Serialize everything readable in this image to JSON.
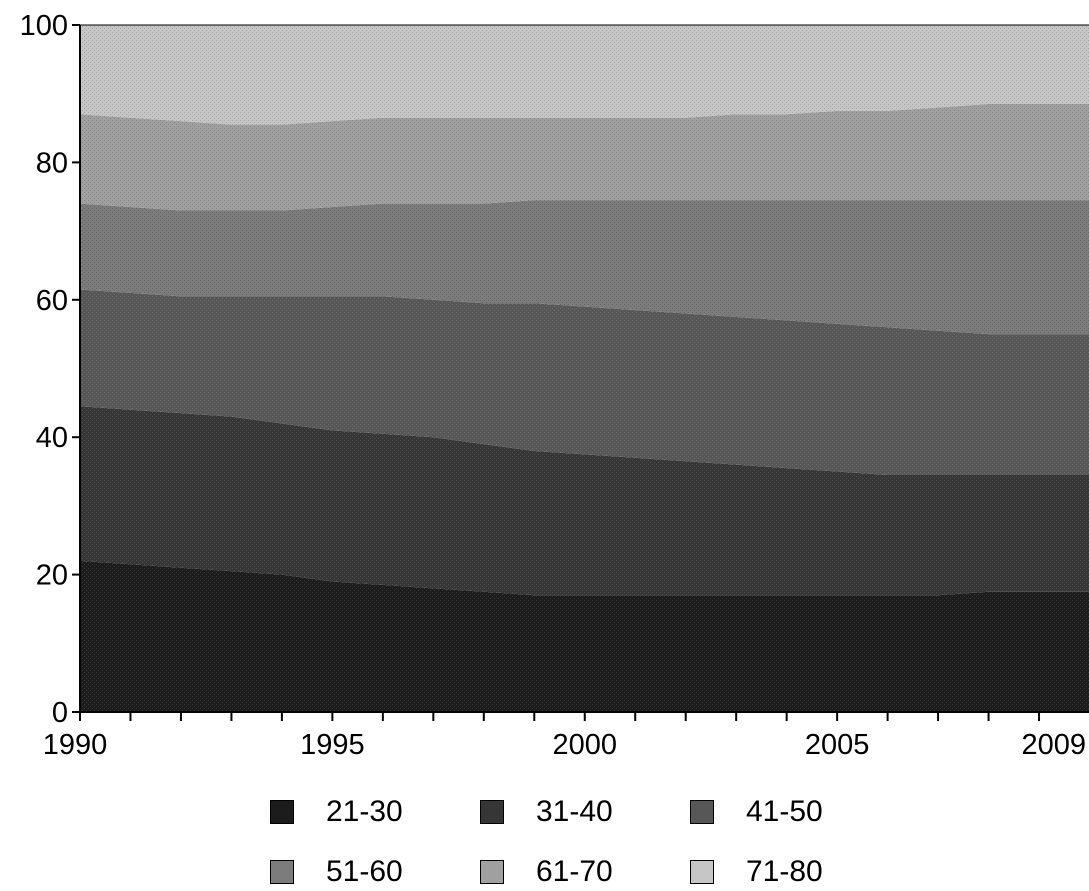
{
  "chart_data": {
    "type": "area",
    "stacked": true,
    "title": "",
    "xlabel": "",
    "ylabel": "",
    "xlim": [
      1990,
      2009
    ],
    "ylim": [
      0,
      100
    ],
    "x_tick_labels": [
      "1990",
      "1995",
      "2000",
      "2005",
      "2009"
    ],
    "y_tick_labels": [
      "0",
      "20",
      "40",
      "60",
      "80",
      "100"
    ],
    "x": [
      1990,
      1991,
      1992,
      1993,
      1994,
      1995,
      1996,
      1997,
      1998,
      1999,
      2000,
      2001,
      2002,
      2003,
      2004,
      2005,
      2006,
      2007,
      2008,
      2009
    ],
    "series": [
      {
        "name": "21-30",
        "color": "#1c1c1c",
        "values": [
          22,
          21.5,
          21,
          20.5,
          20,
          19,
          18.5,
          18,
          17.5,
          17,
          17,
          17,
          17,
          17,
          17,
          17,
          17,
          17,
          17.5,
          17.5
        ]
      },
      {
        "name": "31-40",
        "color": "#363636",
        "values": [
          22.5,
          22.5,
          22.5,
          22.5,
          22,
          22,
          22,
          22,
          21.5,
          21,
          20.5,
          20,
          19.5,
          19,
          18.5,
          18,
          17.5,
          17.5,
          17,
          17
        ]
      },
      {
        "name": "41-50",
        "color": "#575757",
        "values": [
          17,
          17,
          17,
          17.5,
          18.5,
          19.5,
          20,
          20,
          20.5,
          21.5,
          21.5,
          21.5,
          21.5,
          21.5,
          21.5,
          21.5,
          21.5,
          21,
          20.5,
          20.5
        ]
      },
      {
        "name": "51-60",
        "color": "#7c7c7c",
        "values": [
          12.5,
          12.5,
          12.5,
          12.5,
          12.5,
          13,
          13.5,
          14,
          14.5,
          15,
          15.5,
          16,
          16.5,
          17,
          17.5,
          18,
          18.5,
          19,
          19.5,
          19.5
        ]
      },
      {
        "name": "61-70",
        "color": "#a0a0a0",
        "values": [
          13,
          13,
          13,
          12.5,
          12.5,
          12.5,
          12.5,
          12.5,
          12.5,
          12,
          12,
          12,
          12,
          12.5,
          12.5,
          13,
          13,
          13.5,
          14,
          14
        ]
      },
      {
        "name": "71-80",
        "color": "#c6c6c6",
        "values": [
          13,
          13.5,
          14,
          14.5,
          14.5,
          14,
          13.5,
          13.5,
          13.5,
          13.5,
          13.5,
          13.5,
          13.5,
          13,
          13,
          12.5,
          12.5,
          12,
          11.5,
          11.5
        ]
      }
    ],
    "legend_position": "bottom",
    "grid": false
  }
}
